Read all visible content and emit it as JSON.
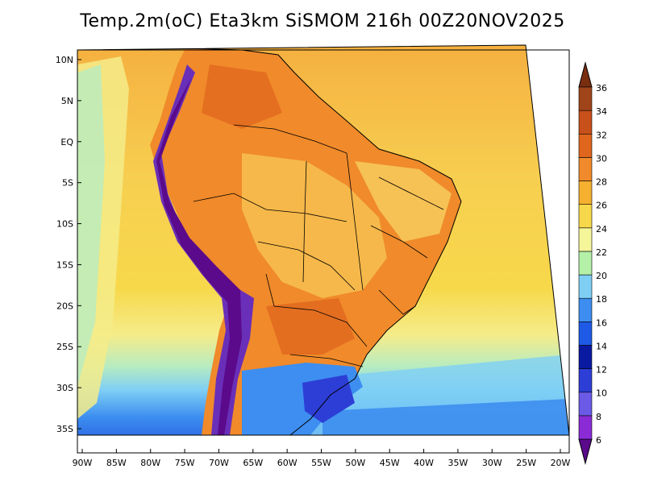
{
  "title": "Temp.2m(oC) Eta3km SiSMOM 216h 00Z20NOV2025",
  "map": {
    "lat_labels": [
      {
        "label": "10N",
        "lat": 10
      },
      {
        "label": "5N",
        "lat": 5
      },
      {
        "label": "EQ",
        "lat": 0
      },
      {
        "label": "5S",
        "lat": -5
      },
      {
        "label": "10S",
        "lat": -10
      },
      {
        "label": "15S",
        "lat": -15
      },
      {
        "label": "20S",
        "lat": -20
      },
      {
        "label": "25S",
        "lat": -25
      },
      {
        "label": "30S",
        "lat": -30
      },
      {
        "label": "35S",
        "lat": -35
      }
    ],
    "lon_labels": [
      {
        "label": "90W",
        "lon": -90
      },
      {
        "label": "85W",
        "lon": -85
      },
      {
        "label": "80W",
        "lon": -80
      },
      {
        "label": "75W",
        "lon": -75
      },
      {
        "label": "70W",
        "lon": -70
      },
      {
        "label": "65W",
        "lon": -65
      },
      {
        "label": "60W",
        "lon": -60
      },
      {
        "label": "55W",
        "lon": -55
      },
      {
        "label": "50W",
        "lon": -50
      },
      {
        "label": "45W",
        "lon": -45
      },
      {
        "label": "40W",
        "lon": -40
      },
      {
        "label": "35W",
        "lon": -35
      },
      {
        "label": "30W",
        "lon": -30
      },
      {
        "label": "25W",
        "lon": -25
      },
      {
        "label": "20W",
        "lon": -20
      }
    ]
  },
  "colorbar": {
    "labels": [
      "6",
      "8",
      "10",
      "12",
      "14",
      "16",
      "18",
      "20",
      "22",
      "24",
      "26",
      "28",
      "30",
      "32",
      "34",
      "36"
    ],
    "colors": [
      "#5a0a8a",
      "#8a2bd6",
      "#6a5ae6",
      "#2d3ed6",
      "#0a1aa0",
      "#1e5ae6",
      "#3d8ef0",
      "#7fcff5",
      "#b5f0a8",
      "#f5f59a",
      "#f7d84a",
      "#f5b030",
      "#f08a2a",
      "#e0661e",
      "#c8501a",
      "#a0441a",
      "#7a2e10"
    ]
  },
  "colors": {
    "ocean_north": "#f5b040",
    "ocean_mid": "#f7cf50",
    "ocean_south_warm": "#f5ec8a",
    "ocean_cool": "#b8ecc0",
    "ocean_cold": "#7fcff5",
    "ocean_colder": "#3d8ef0",
    "land_hot": "#f08a2a",
    "land_warm": "#f7b450",
    "andes": "#6a2fb8",
    "south_cold": "#2d6ee6"
  }
}
